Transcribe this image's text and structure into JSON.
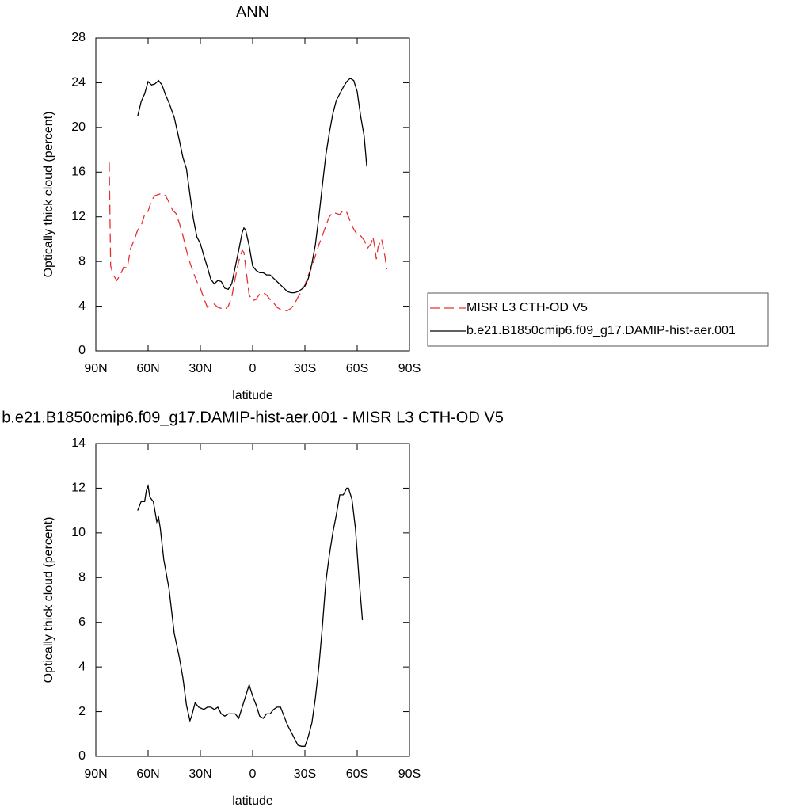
{
  "chart_data": [
    {
      "type": "line",
      "title": "ANN",
      "xlabel": "latitude",
      "ylabel": "Optically thick cloud (percent)",
      "xlim": [
        90,
        -90
      ],
      "xticks": [
        {
          "value": 90,
          "label": "90N"
        },
        {
          "value": 60,
          "label": "60N"
        },
        {
          "value": 30,
          "label": "30N"
        },
        0,
        {
          "value": -30,
          "label": "30S"
        },
        {
          "value": -60,
          "label": "60S"
        },
        {
          "value": -90,
          "label": "90S"
        }
      ],
      "ylim": [
        0,
        28
      ],
      "yticks": [
        0,
        4,
        8,
        12,
        16,
        20,
        24,
        28
      ],
      "legend": "right",
      "series": [
        {
          "name": "MISR L3 CTH-OD V5",
          "color": "#e8302f",
          "line_style": "dashed",
          "x": [
            82.3,
            81.5,
            80,
            78,
            76,
            74,
            72,
            70,
            68,
            66,
            64,
            62,
            60,
            58,
            56,
            54,
            52,
            50,
            48,
            46,
            44,
            42,
            40,
            38,
            36,
            34,
            32,
            30,
            28,
            26,
            24,
            22,
            20,
            18,
            16,
            14,
            12,
            10,
            8,
            6,
            5,
            4,
            2,
            0,
            -2,
            -4,
            -6,
            -8,
            -10,
            -12,
            -14,
            -16,
            -18,
            -20,
            -22,
            -24,
            -26,
            -28,
            -30,
            -32,
            -34,
            -36,
            -38,
            -40,
            -42,
            -44,
            -46,
            -48,
            -50,
            -52,
            -54,
            -56,
            -58,
            -60,
            -62,
            -64,
            -66,
            -68,
            -69,
            -70,
            -71,
            -72,
            -74,
            -76,
            -77
          ],
          "values": [
            16.9,
            7.6,
            6.8,
            6.3,
            6.8,
            7.5,
            7.4,
            9.2,
            9.9,
            10.8,
            11.2,
            12.2,
            12.5,
            13.5,
            13.9,
            14.0,
            14.1,
            13.9,
            13.3,
            12.6,
            12.3,
            11.4,
            10.3,
            9.0,
            7.9,
            7.0,
            6.2,
            5.6,
            4.7,
            3.9,
            4.0,
            4.2,
            3.9,
            3.8,
            3.7,
            4.0,
            4.8,
            6.5,
            8.0,
            9.0,
            8.8,
            7.5,
            5.0,
            4.5,
            4.6,
            5.1,
            5.2,
            5.0,
            4.6,
            4.3,
            3.9,
            3.7,
            3.6,
            3.6,
            3.8,
            4.2,
            4.8,
            5.3,
            5.9,
            6.8,
            7.5,
            8.5,
            9.5,
            10.3,
            11.2,
            12.0,
            12.4,
            12.3,
            12.2,
            12.6,
            12.4,
            11.6,
            10.9,
            10.4,
            10.3,
            9.9,
            9.2,
            9.6,
            10.2,
            9.4,
            8.2,
            9.3,
            10.0,
            8.4,
            7.3
          ]
        },
        {
          "name": "b.e21.B1850cmip6.f09_g17.DAMIP-hist-aer.001",
          "color": "#000000",
          "line_style": "solid",
          "x": [
            66,
            64,
            62,
            60,
            58,
            56,
            54,
            52,
            50,
            48,
            45,
            42,
            40,
            38,
            36,
            34,
            32,
            30,
            28,
            26,
            24,
            22,
            20,
            18,
            16,
            14,
            12,
            10,
            8,
            6,
            5,
            4,
            2,
            0,
            -2,
            -4,
            -6,
            -8,
            -10,
            -12,
            -14,
            -16,
            -18,
            -20,
            -22,
            -24,
            -26,
            -28,
            -30,
            -32,
            -34,
            -36,
            -38,
            -40,
            -42,
            -44,
            -46,
            -48,
            -50,
            -52,
            -54,
            -56,
            -58,
            -60,
            -62,
            -64,
            -65.5
          ],
          "values": [
            21.0,
            22.3,
            23.0,
            24.1,
            23.8,
            23.9,
            24.2,
            23.8,
            22.9,
            22.2,
            20.9,
            18.8,
            17.3,
            16.3,
            14.0,
            11.8,
            10.2,
            9.6,
            8.5,
            7.5,
            6.4,
            6.0,
            6.3,
            6.2,
            5.6,
            5.5,
            6.0,
            7.5,
            9.0,
            10.6,
            11.0,
            10.8,
            9.4,
            7.6,
            7.2,
            7.0,
            7.0,
            6.8,
            6.8,
            6.5,
            6.2,
            5.9,
            5.6,
            5.3,
            5.2,
            5.2,
            5.3,
            5.5,
            5.8,
            6.5,
            7.8,
            9.5,
            12.0,
            14.8,
            17.5,
            19.5,
            21.2,
            22.4,
            23.0,
            23.6,
            24.1,
            24.4,
            24.2,
            23.2,
            21.0,
            19.2,
            16.5
          ]
        }
      ]
    },
    {
      "type": "line",
      "title": "b.e21.B1850cmip6.f09_g17.DAMIP-hist-aer.001 - MISR L3 CTH-OD V5",
      "xlabel": "latitude",
      "ylabel": "Optically thick cloud (percent)",
      "xlim": [
        90,
        -90
      ],
      "xticks": [
        {
          "value": 90,
          "label": "90N"
        },
        {
          "value": 60,
          "label": "60N"
        },
        {
          "value": 30,
          "label": "30N"
        },
        0,
        {
          "value": -30,
          "label": "30S"
        },
        {
          "value": -60,
          "label": "60S"
        },
        {
          "value": -90,
          "label": "90S"
        }
      ],
      "ylim": [
        0,
        14
      ],
      "yticks": [
        0,
        2,
        4,
        6,
        8,
        10,
        12,
        14
      ],
      "series": [
        {
          "color": "#000000",
          "line_style": "solid",
          "x": [
            66,
            64,
            62,
            61,
            60,
            59,
            57,
            55,
            54,
            53,
            51,
            48,
            45,
            42,
            40,
            38,
            36,
            35,
            33,
            31,
            28,
            26,
            24,
            22,
            20,
            18,
            16,
            14,
            12,
            10,
            8,
            6,
            4,
            2,
            0,
            -2,
            -4,
            -6,
            -8,
            -10,
            -12,
            -14,
            -16,
            -18,
            -20,
            -22,
            -24,
            -26,
            -28,
            -30,
            -32,
            -34,
            -36,
            -38,
            -40,
            -42,
            -44,
            -46,
            -48,
            -50,
            -52,
            -54,
            -55,
            -57,
            -59,
            -61,
            -63
          ],
          "values": [
            11.0,
            11.4,
            11.4,
            11.9,
            12.1,
            11.6,
            11.4,
            10.5,
            10.7,
            10.2,
            8.8,
            7.5,
            5.5,
            4.4,
            3.5,
            2.3,
            1.6,
            1.8,
            2.4,
            2.2,
            2.1,
            2.2,
            2.2,
            2.1,
            2.2,
            1.9,
            1.8,
            1.9,
            1.9,
            1.9,
            1.7,
            2.2,
            2.7,
            3.2,
            2.7,
            2.3,
            1.8,
            1.7,
            1.9,
            1.9,
            2.1,
            2.2,
            2.2,
            1.8,
            1.4,
            1.1,
            0.8,
            0.5,
            0.45,
            0.45,
            0.9,
            1.5,
            2.6,
            4.0,
            5.8,
            7.8,
            9.0,
            10.0,
            10.8,
            11.7,
            11.7,
            12.0,
            12.0,
            11.5,
            10.2,
            8.0,
            6.1
          ]
        }
      ]
    }
  ]
}
